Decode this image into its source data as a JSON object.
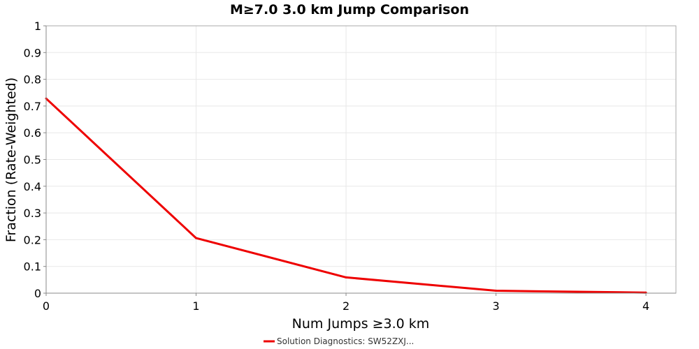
{
  "chart_data": {
    "type": "line",
    "title": "M≥7.0 3.0 km Jump Comparison",
    "xlabel": "Num Jumps ≥3.0 km",
    "ylabel": "Fraction (Rate-Weighted)",
    "xlim": [
      0,
      4.2
    ],
    "ylim": [
      0,
      1
    ],
    "grid": true,
    "x_ticks": [
      0,
      1,
      2,
      3,
      4
    ],
    "x_tick_labels": [
      "0",
      "1",
      "2",
      "3",
      "4"
    ],
    "y_ticks": [
      0,
      0.1,
      0.2,
      0.3,
      0.4,
      0.5,
      0.6,
      0.7,
      0.8,
      0.9,
      1
    ],
    "y_tick_labels": [
      "0",
      "0.1",
      "0.2",
      "0.3",
      "0.4",
      "0.5",
      "0.6",
      "0.7",
      "0.8",
      "0.9",
      "1"
    ],
    "legend_position": "bottom",
    "series": [
      {
        "name": "Solution Diagnostics: SW52ZXJ...",
        "color": "#ee0000",
        "x": [
          0,
          1,
          2,
          3,
          4
        ],
        "values": [
          0.728,
          0.206,
          0.059,
          0.009,
          0.002
        ]
      }
    ]
  }
}
